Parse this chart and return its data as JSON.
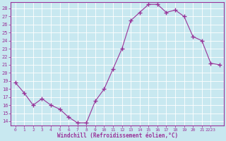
{
  "x": [
    0,
    1,
    2,
    3,
    4,
    5,
    6,
    7,
    8,
    9,
    10,
    11,
    12,
    13,
    14,
    15,
    16,
    17,
    18,
    19,
    20,
    21,
    22,
    23
  ],
  "y": [
    18.8,
    17.5,
    16.0,
    16.8,
    16.0,
    15.5,
    14.5,
    13.8,
    13.8,
    16.5,
    18.0,
    20.5,
    23.0,
    26.5,
    27.5,
    28.5,
    28.5,
    27.5,
    27.8,
    27.0,
    24.5,
    24.0,
    21.2,
    21.0
  ],
  "line_color": "#993399",
  "marker": "+",
  "marker_size": 4,
  "bg_color": "#c8e8f0",
  "grid_color": "#b0d8e0",
  "xlabel": "Windchill (Refroidissement éolien,°C)",
  "ytick_labels": [
    "14",
    "15",
    "16",
    "17",
    "18",
    "19",
    "20",
    "21",
    "22",
    "23",
    "24",
    "25",
    "26",
    "27",
    "28"
  ],
  "ytick_vals": [
    14,
    15,
    16,
    17,
    18,
    19,
    20,
    21,
    22,
    23,
    24,
    25,
    26,
    27,
    28
  ],
  "ylim": [
    13.5,
    28.8
  ],
  "xlim": [
    -0.5,
    23.5
  ],
  "xtick_labels": [
    "0",
    "1",
    "2",
    "3",
    "4",
    "5",
    "6",
    "7",
    "8",
    "9",
    "10",
    "11",
    "12",
    "13",
    "14",
    "15",
    "16",
    "17",
    "18",
    "19",
    "20",
    "21",
    "2223"
  ],
  "xtick_vals": [
    0,
    1,
    2,
    3,
    4,
    5,
    6,
    7,
    8,
    9,
    10,
    11,
    12,
    13,
    14,
    15,
    16,
    17,
    18,
    19,
    20,
    21,
    22
  ]
}
